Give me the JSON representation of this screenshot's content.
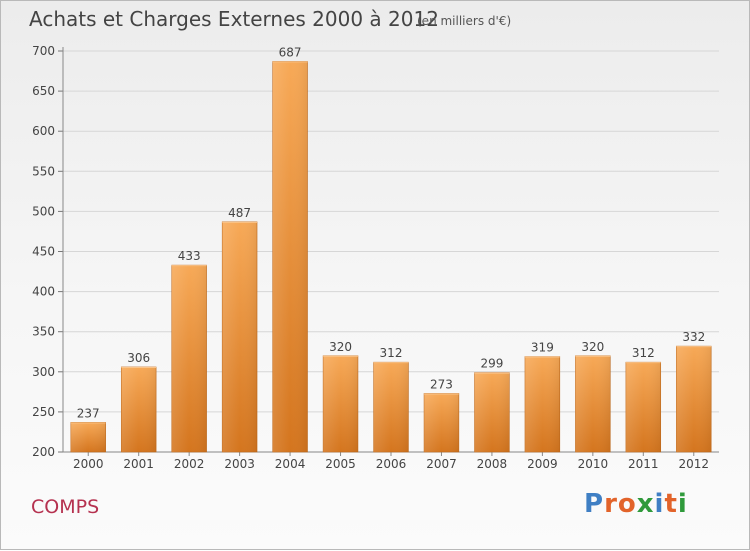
{
  "header": {
    "title": "Achats et Charges Externes 2000 à 2012",
    "unit": "(en milliers d'€)"
  },
  "footer": {
    "commune": "COMPS",
    "logo": "Proxiti"
  },
  "colors": {
    "bar_light": "#f7a957",
    "bar_dark": "#d4751e",
    "commune_text": "#b5314f",
    "logo_letters": [
      "#3f7fc4",
      "#e2632a",
      "#e2632a",
      "#2f9a3b",
      "#3f7fc4",
      "#e2632a",
      "#2f9a3b"
    ]
  },
  "chart_data": {
    "type": "bar",
    "title": "Achats et Charges Externes 2000 à 2012",
    "subtitle": "(en milliers d'€)",
    "xlabel": "",
    "ylabel": "",
    "categories": [
      "2000",
      "2001",
      "2002",
      "2003",
      "2004",
      "2005",
      "2006",
      "2007",
      "2008",
      "2009",
      "2010",
      "2011",
      "2012"
    ],
    "values": [
      237,
      306,
      433,
      487,
      687,
      320,
      312,
      273,
      299,
      319,
      320,
      312,
      332
    ],
    "ylim": [
      200,
      700
    ],
    "yticks": [
      200,
      250,
      300,
      350,
      400,
      450,
      500,
      550,
      600,
      650,
      700
    ],
    "grid": true,
    "legend": "none"
  }
}
